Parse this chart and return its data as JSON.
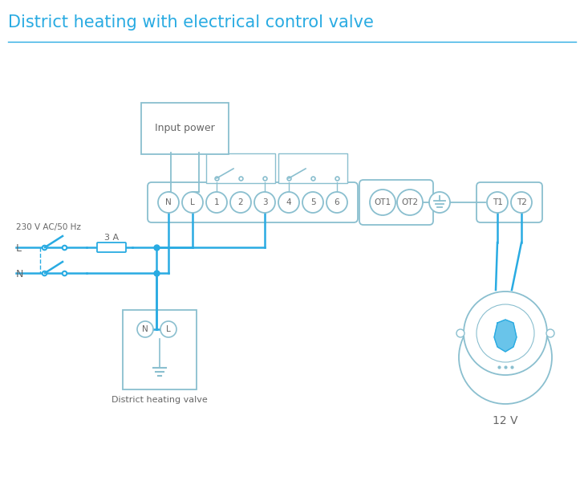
{
  "title": "District heating with electrical control valve",
  "title_color": "#29abe2",
  "bg_color": "#ffffff",
  "wire_color": "#29abe2",
  "comp_color": "#8abfcf",
  "text_color": "#666666",
  "label_230": "230 V AC/50 Hz",
  "label_3A": "3 A",
  "label_L": "L",
  "label_N": "N",
  "label_12V": "12 V",
  "label_input": "Input power",
  "label_district": "District heating valve",
  "terminal_main": [
    "N",
    "L",
    "1",
    "2",
    "3",
    "4",
    "5",
    "6"
  ],
  "terminal_ot": [
    "OT1",
    "OT2"
  ],
  "terminal_t": [
    "T1",
    "T2"
  ]
}
